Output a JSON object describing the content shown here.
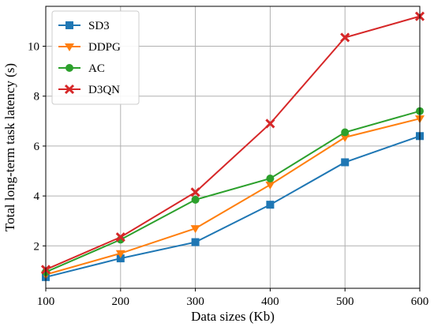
{
  "chart_data": {
    "type": "line",
    "xlabel": "Data sizes (Kb)",
    "ylabel": "Total long-term task latency (s)",
    "x": [
      100,
      200,
      300,
      400,
      500,
      600
    ],
    "xlim": [
      100,
      600
    ],
    "ylim": [
      0.3,
      11.6
    ],
    "xticks": [
      100,
      200,
      300,
      400,
      500,
      600
    ],
    "yticks": [
      2,
      4,
      6,
      8,
      10
    ],
    "grid": true,
    "legend_position": "top-left",
    "series": [
      {
        "name": "SD3",
        "color": "#1f77b4",
        "marker": "square",
        "values": [
          0.75,
          1.5,
          2.15,
          3.65,
          5.35,
          6.4
        ]
      },
      {
        "name": "DDPG",
        "color": "#ff7f0e",
        "marker": "triangle-down",
        "values": [
          0.85,
          1.7,
          2.7,
          4.45,
          6.35,
          7.1
        ]
      },
      {
        "name": "AC",
        "color": "#2ca02c",
        "marker": "circle",
        "values": [
          0.95,
          2.25,
          3.85,
          4.7,
          6.55,
          7.4
        ]
      },
      {
        "name": "D3QN",
        "color": "#d62728",
        "marker": "x",
        "values": [
          1.05,
          2.35,
          4.15,
          6.9,
          10.35,
          11.2
        ]
      }
    ]
  }
}
